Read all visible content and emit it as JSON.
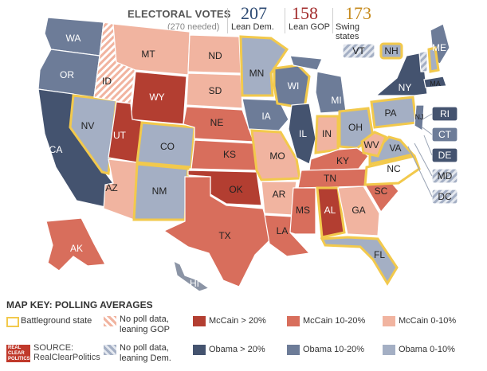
{
  "header": {
    "title": "ELECTORAL VOTES",
    "subtitle": "(270 needed)",
    "dem": {
      "count": "207",
      "label": "Lean Dem.",
      "color": "#2d4a73"
    },
    "gop": {
      "count": "158",
      "label": "Lean GOP",
      "color": "#a32d2d"
    },
    "swing": {
      "count": "173",
      "label": "Swing states",
      "color": "#c68a1c"
    }
  },
  "colors": {
    "mccain_20": "#b33e31",
    "mccain_10": "#d86e5c",
    "mccain_0": "#f1b4a0",
    "obama_20": "#44536f",
    "obama_10": "#6d7c98",
    "obama_0": "#a4afc4",
    "no_poll_gop": "#f1b4a0",
    "no_poll_dem": "#a4afc4",
    "battleground_border": "#f2c94c",
    "hawaii": "#8b94a5"
  },
  "states": {
    "WA": "WA",
    "OR": "OR",
    "CA": "CA",
    "NV": "NV",
    "ID": "ID",
    "MT": "MT",
    "WY": "WY",
    "UT": "UT",
    "AZ": "AZ",
    "CO": "CO",
    "NM": "NM",
    "ND": "ND",
    "SD": "SD",
    "NE": "NE",
    "KS": "KS",
    "OK": "OK",
    "TX": "TX",
    "MN": "MN",
    "IA": "IA",
    "MO": "MO",
    "AR": "AR",
    "LA": "LA",
    "WI": "WI",
    "IL": "IL",
    "MI": "MI",
    "IN": "IN",
    "OH": "OH",
    "KY": "KY",
    "TN": "TN",
    "MS": "MS",
    "AL": "AL",
    "GA": "GA",
    "FL": "FL",
    "SC": "SC",
    "NC": "NC",
    "VA": "VA",
    "WV": "WV",
    "PA": "PA",
    "NY": "NY",
    "ME": "ME",
    "VT": "VT",
    "NH": "NH",
    "MA": "MA",
    "RI": "RI",
    "CT": "CT",
    "NJ": "NJ",
    "DE": "DE",
    "MD": "MD",
    "DC": "DC",
    "AK": "AK",
    "HI": "HI"
  },
  "key": {
    "title": "MAP KEY: POLLING AVERAGES",
    "battleground": "Battleground state",
    "no_poll_gop": "No poll data, leaning GOP",
    "no_poll_dem": "No poll data, leaning Dem.",
    "mccain_20": "McCain > 20%",
    "mccain_10": "McCain 10-20%",
    "mccain_0": "McCain 0-10%",
    "obama_20": "Obama > 20%",
    "obama_10": "Obama 10-20%",
    "obama_0": "Obama 0-10%",
    "source_label": "SOURCE:",
    "source_name": "RealClearPolitics",
    "logo_text": "REAL CLEAR POLITICS"
  }
}
